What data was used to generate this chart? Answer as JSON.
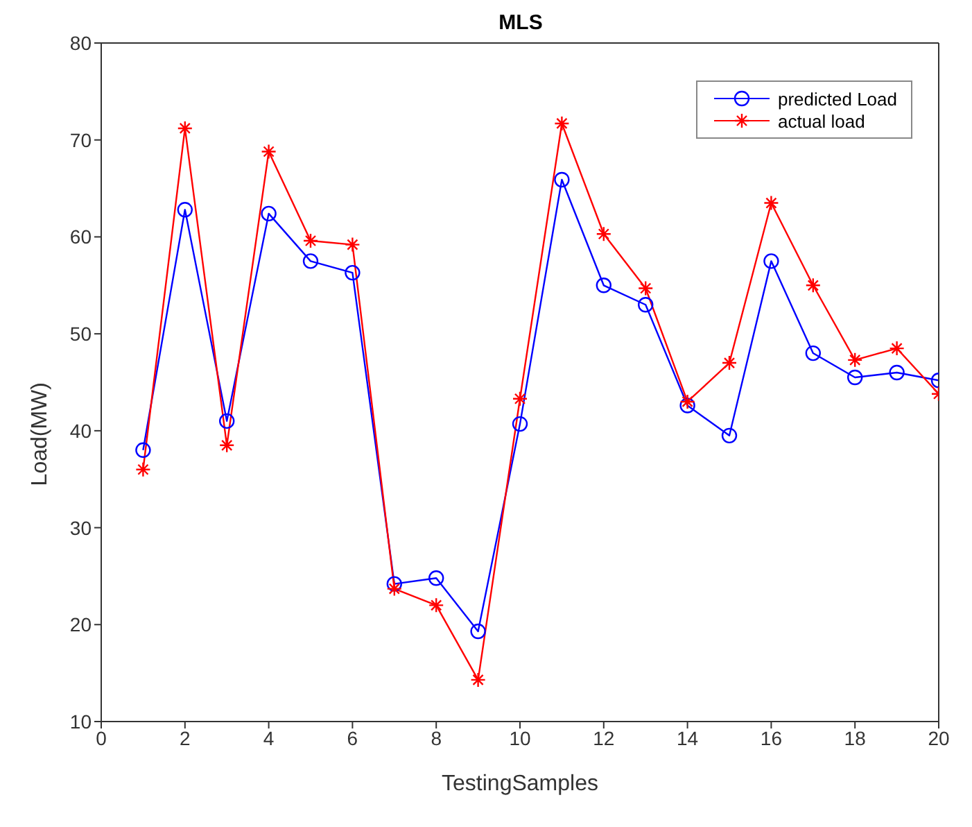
{
  "chart_data": {
    "type": "line",
    "title": "MLS",
    "xlabel": "TestingSamples",
    "ylabel": "Load(MW)",
    "x": [
      1,
      2,
      3,
      4,
      5,
      6,
      7,
      8,
      9,
      10,
      11,
      12,
      13,
      14,
      15,
      16,
      17,
      18,
      19,
      20
    ],
    "series": [
      {
        "name": "predicted Load",
        "color": "#0000ff",
        "marker": "circle",
        "values": [
          38,
          62.8,
          41,
          62.4,
          57.5,
          56.3,
          24.2,
          24.8,
          19.3,
          40.7,
          65.9,
          55,
          53,
          42.6,
          39.5,
          57.5,
          48,
          45.5,
          46,
          45.2
        ]
      },
      {
        "name": "actual load",
        "color": "#ff0000",
        "marker": "cross",
        "values": [
          36,
          71.2,
          38.5,
          68.8,
          59.6,
          59.2,
          23.7,
          22,
          14.3,
          43.3,
          71.7,
          60.3,
          54.7,
          43,
          47,
          63.5,
          55,
          47.3,
          48.5,
          43.8
        ]
      }
    ],
    "xlim": [
      0,
      20
    ],
    "xticks": [
      0,
      2,
      4,
      6,
      8,
      10,
      12,
      14,
      16,
      18,
      20
    ],
    "ylim": [
      10,
      80
    ],
    "yticks": [
      10,
      20,
      30,
      40,
      50,
      60,
      70,
      80
    ],
    "grid": false,
    "legend": "top right",
    "line_style": "solid"
  }
}
